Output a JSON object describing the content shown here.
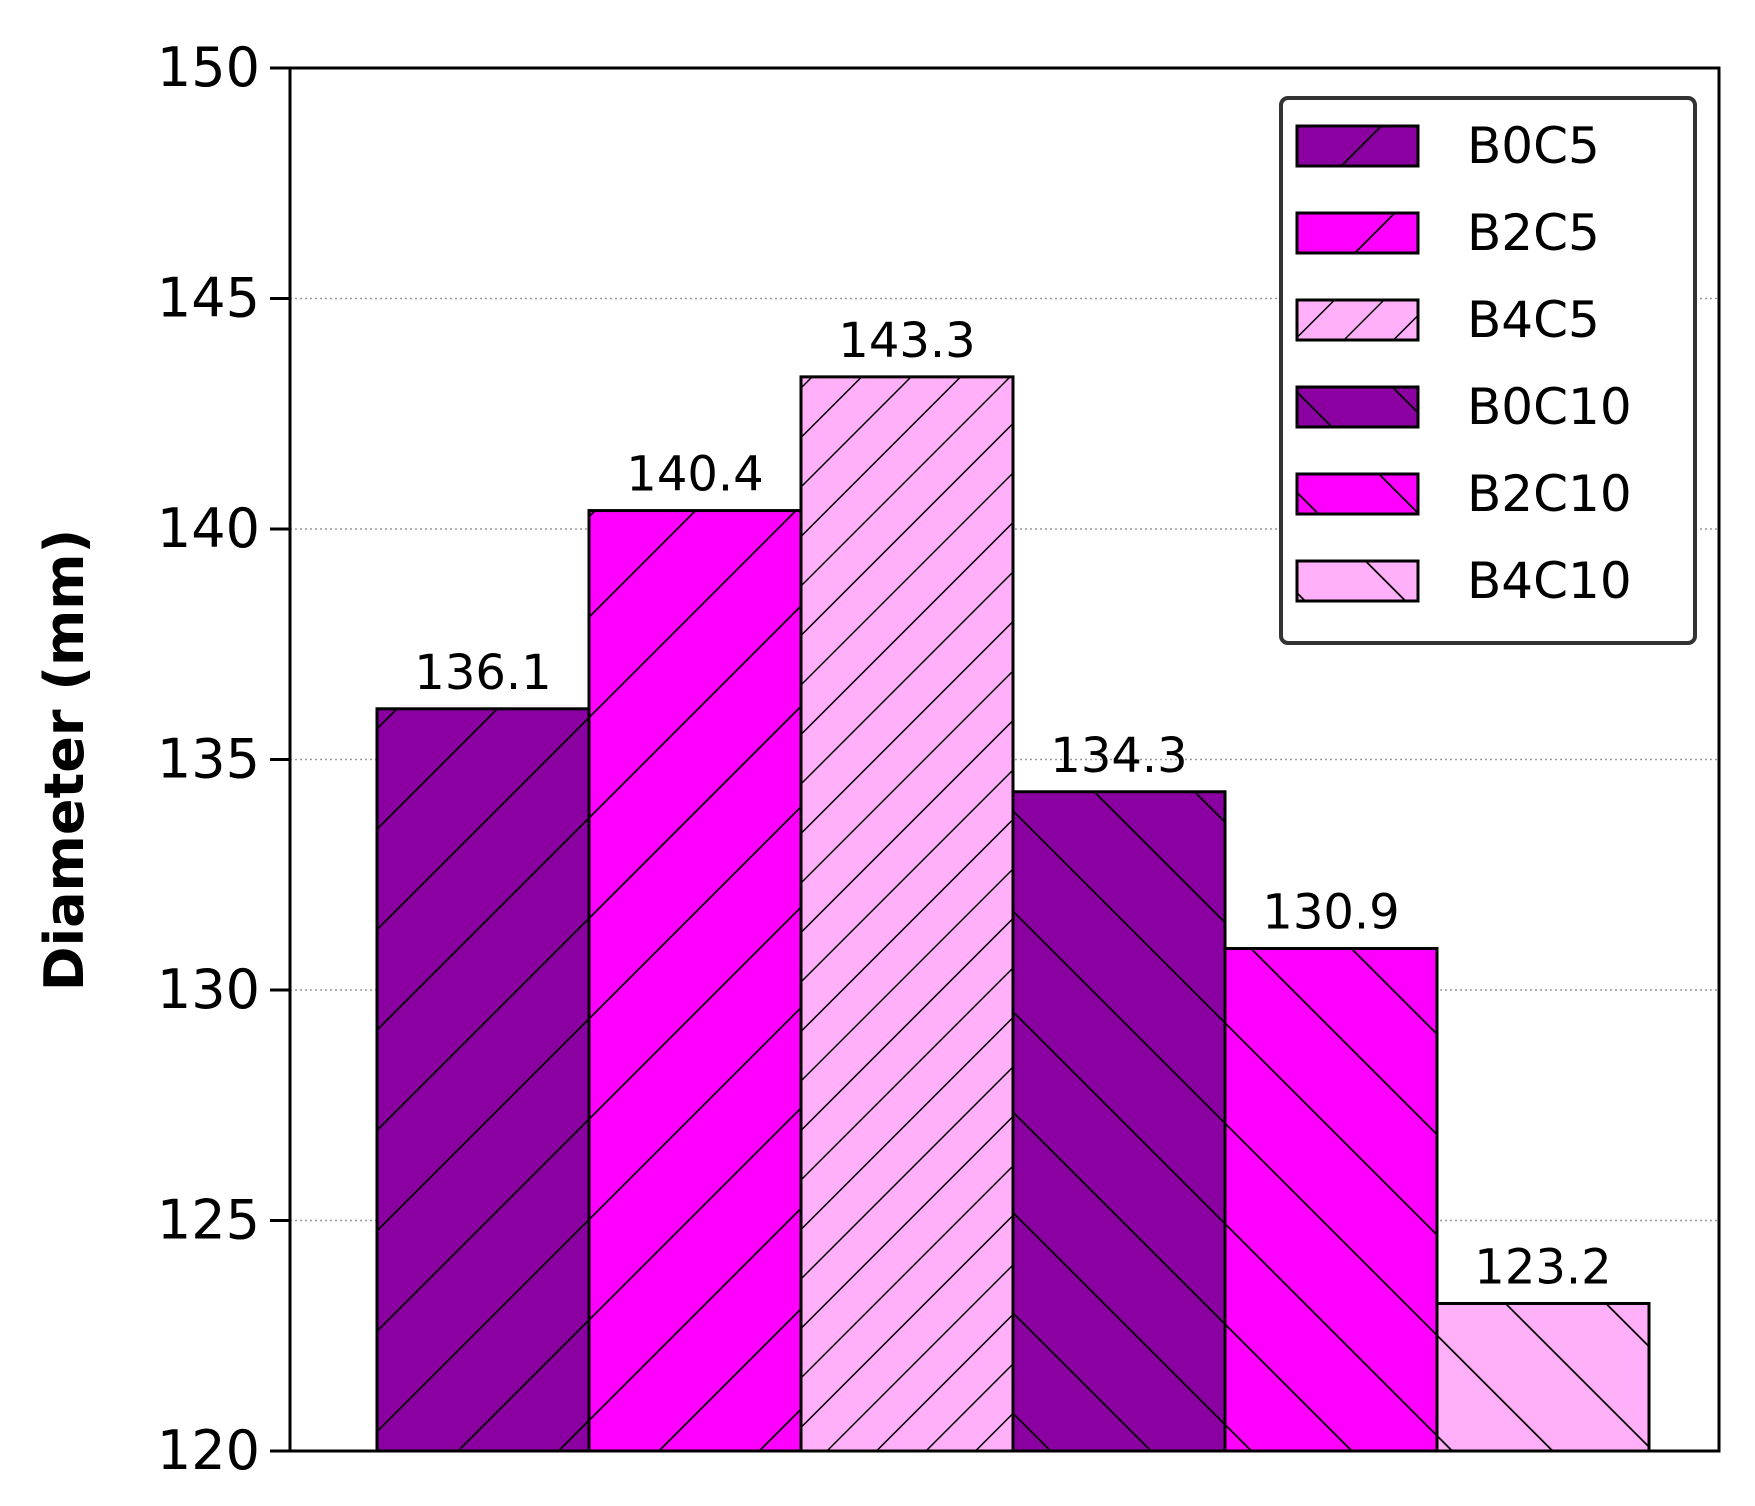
{
  "chart_data": {
    "type": "bar",
    "title": "",
    "xlabel": "",
    "ylabel": "Diameter (mm)",
    "ylim": [
      120,
      150
    ],
    "yticks": [
      120,
      125,
      130,
      135,
      140,
      145,
      150
    ],
    "ytick_labels": [
      "120",
      "125",
      "130",
      "135",
      "140",
      "145",
      "150"
    ],
    "grid": "horizontal dotted",
    "legend_position": "top-right",
    "series": [
      {
        "name": "B0C5",
        "value": 136.1,
        "label": "136.1",
        "color": "#8B00A0",
        "hatch": "forward"
      },
      {
        "name": "B2C5",
        "value": 140.4,
        "label": "140.4",
        "color": "#FF00FF",
        "hatch": "forward"
      },
      {
        "name": "B4C5",
        "value": 143.3,
        "label": "143.3",
        "color": "#FFB0F8",
        "hatch": "forward-dense"
      },
      {
        "name": "B0C10",
        "value": 134.3,
        "label": "134.3",
        "color": "#8B00A0",
        "hatch": "back"
      },
      {
        "name": "B2C10",
        "value": 130.9,
        "label": "130.9",
        "color": "#FF00FF",
        "hatch": "back"
      },
      {
        "name": "B4C10",
        "value": 123.2,
        "label": "123.2",
        "color": "#FFB0F8",
        "hatch": "back"
      }
    ]
  }
}
